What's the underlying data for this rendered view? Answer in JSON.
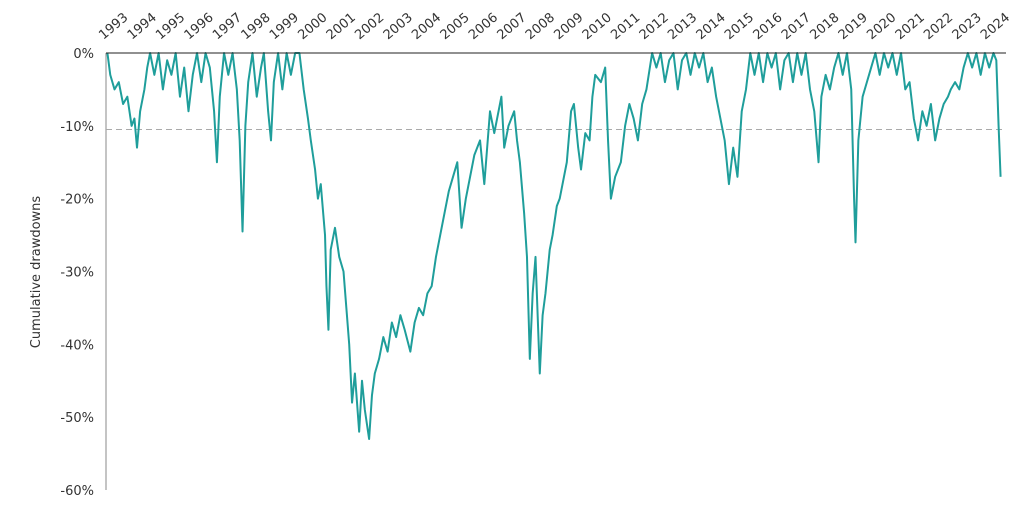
{
  "chart_data": {
    "type": "line",
    "y_label": "Cumulative drawdowns",
    "color": "#1f9e9b",
    "reference_line": -10.5,
    "xlim": [
      1992.6,
      2024.1
    ],
    "xticks": [
      1993,
      1994,
      1995,
      1996,
      1997,
      1998,
      1999,
      2000,
      2001,
      2002,
      2003,
      2004,
      2005,
      2006,
      2007,
      2008,
      2009,
      2010,
      2011,
      2012,
      2013,
      2014,
      2015,
      2016,
      2017,
      2018,
      2019,
      2020,
      2021,
      2022,
      2023,
      2024
    ],
    "ylim": [
      -60,
      0
    ],
    "yticks": [
      {
        "value": 0,
        "label": "0%"
      },
      {
        "value": -10,
        "label": "-10%"
      },
      {
        "value": -20,
        "label": "-20%"
      },
      {
        "value": -30,
        "label": "-30%"
      },
      {
        "value": -40,
        "label": "-40%"
      },
      {
        "value": -50,
        "label": "-50%"
      },
      {
        "value": -60,
        "label": "-60%"
      }
    ],
    "x": [
      1992.65,
      1992.75,
      1992.9,
      1993.05,
      1993.2,
      1993.35,
      1993.5,
      1993.6,
      1993.69,
      1993.8,
      1993.95,
      1994.05,
      1994.15,
      1994.3,
      1994.45,
      1994.6,
      1994.75,
      1994.9,
      1995.05,
      1995.2,
      1995.35,
      1995.5,
      1995.65,
      1995.8,
      1995.95,
      1996.1,
      1996.25,
      1996.4,
      1996.5,
      1996.6,
      1996.75,
      1996.9,
      1997.05,
      1997.2,
      1997.3,
      1997.4,
      1997.5,
      1997.6,
      1997.75,
      1997.9,
      1998.05,
      1998.15,
      1998.3,
      1998.4,
      1998.5,
      1998.65,
      1998.8,
      1998.95,
      1999.1,
      1999.25,
      1999.4,
      1999.55,
      1999.7,
      1999.8,
      1999.95,
      2000.05,
      2000.15,
      2000.3,
      2000.35,
      2000.42,
      2000.5,
      2000.65,
      2000.8,
      2000.95,
      2001.05,
      2001.15,
      2001.25,
      2001.35,
      2001.5,
      2001.6,
      2001.7,
      2001.85,
      2001.95,
      2002.05,
      2002.2,
      2002.35,
      2002.5,
      2002.65,
      2002.8,
      2002.95,
      2003.1,
      2003.3,
      2003.45,
      2003.6,
      2003.75,
      2003.9,
      2004.05,
      2004.2,
      2004.35,
      2004.5,
      2004.65,
      2004.8,
      2004.95,
      2005.1,
      2005.25,
      2005.4,
      2005.55,
      2005.75,
      2005.9,
      2006.0,
      2006.1,
      2006.25,
      2006.35,
      2006.5,
      2006.6,
      2006.75,
      2006.95,
      2007.05,
      2007.15,
      2007.3,
      2007.4,
      2007.5,
      2007.6,
      2007.7,
      2007.85,
      2007.95,
      2008.05,
      2008.2,
      2008.3,
      2008.45,
      2008.55,
      2008.7,
      2008.8,
      2008.95,
      2009.05,
      2009.2,
      2009.3,
      2009.45,
      2009.6,
      2009.7,
      2009.8,
      2010.0,
      2010.15,
      2010.25,
      2010.35,
      2010.5,
      2010.7,
      2010.85,
      2011.0,
      2011.15,
      2011.3,
      2011.45,
      2011.6,
      2011.8,
      2011.95,
      2012.1,
      2012.25,
      2012.4,
      2012.55,
      2012.7,
      2012.85,
      2013.0,
      2013.15,
      2013.3,
      2013.45,
      2013.6,
      2013.75,
      2013.9,
      2014.05,
      2014.2,
      2014.35,
      2014.5,
      2014.65,
      2014.8,
      2014.95,
      2015.1,
      2015.25,
      2015.4,
      2015.55,
      2015.7,
      2015.85,
      2016.0,
      2016.15,
      2016.3,
      2016.45,
      2016.6,
      2016.75,
      2016.9,
      2017.05,
      2017.2,
      2017.35,
      2017.5,
      2017.65,
      2017.75,
      2017.9,
      2018.05,
      2018.2,
      2018.35,
      2018.5,
      2018.65,
      2018.8,
      2018.9,
      2018.95,
      2019.05,
      2019.2,
      2019.35,
      2019.5,
      2019.65,
      2019.8,
      2019.95,
      2020.1,
      2020.25,
      2020.4,
      2020.55,
      2020.7,
      2020.85,
      2021.0,
      2021.15,
      2021.3,
      2021.45,
      2021.6,
      2021.75,
      2021.9,
      2022.05,
      2022.2,
      2022.3,
      2022.45,
      2022.6,
      2022.75,
      2022.9,
      2023.05,
      2023.2,
      2023.35,
      2023.5,
      2023.65,
      2023.8,
      2023.9,
      2023.98,
      2024.05
    ],
    "values": [
      0,
      -3,
      -5,
      -4,
      -7,
      -6,
      -10,
      -9,
      -13,
      -8,
      -5,
      -2,
      0,
      -3,
      0,
      -5,
      -1,
      -3,
      0,
      -6,
      -2,
      -8,
      -3,
      0,
      -4,
      0,
      -2,
      -8,
      -15,
      -6,
      0,
      -3,
      0,
      -5,
      -12,
      -24.5,
      -10,
      -4,
      0,
      -6,
      -2,
      0,
      -8,
      -12,
      -4,
      0,
      -5,
      0,
      -3,
      0,
      0,
      -5,
      -9,
      -12,
      -16,
      -20,
      -18,
      -25,
      -32,
      -38,
      -27,
      -24,
      -28,
      -30,
      -35,
      -40,
      -48,
      -44,
      -52,
      -45,
      -49,
      -53,
      -47,
      -44,
      -42,
      -39,
      -41,
      -37,
      -39,
      -36,
      -38,
      -41,
      -37,
      -35,
      -36,
      -33,
      -32,
      -28,
      -25,
      -22,
      -19,
      -17,
      -15,
      -24,
      -20,
      -17,
      -14,
      -12,
      -18,
      -13,
      -8,
      -11,
      -9,
      -6,
      -13,
      -10,
      -8,
      -12,
      -15,
      -22,
      -28,
      -42,
      -33,
      -28,
      -44,
      -36,
      -33,
      -27,
      -25,
      -21,
      -20,
      -17,
      -15,
      -8,
      -7,
      -13,
      -16,
      -11,
      -12,
      -6,
      -3,
      -4,
      -2,
      -12,
      -20,
      -17,
      -15,
      -10,
      -7,
      -9,
      -12,
      -7,
      -5,
      0,
      -2,
      0,
      -4,
      -1,
      0,
      -5,
      -1,
      0,
      -3,
      0,
      -2,
      0,
      -4,
      -2,
      -6,
      -9,
      -12,
      -18,
      -13,
      -17,
      -8,
      -5,
      0,
      -3,
      0,
      -4,
      0,
      -2,
      0,
      -5,
      -1,
      0,
      -4,
      0,
      -3,
      0,
      -5,
      -8,
      -15,
      -6,
      -3,
      -5,
      -2,
      0,
      -3,
      0,
      -5,
      -20,
      -26,
      -12,
      -6,
      -4,
      -2,
      0,
      -3,
      0,
      -2,
      0,
      -3,
      0,
      -5,
      -4,
      -9,
      -12,
      -8,
      -10,
      -7,
      -12,
      -9,
      -7,
      -6,
      -5,
      -4,
      -5,
      -2,
      0,
      -2,
      0,
      -3,
      0,
      -2,
      0,
      -1,
      -10,
      -17
    ]
  }
}
